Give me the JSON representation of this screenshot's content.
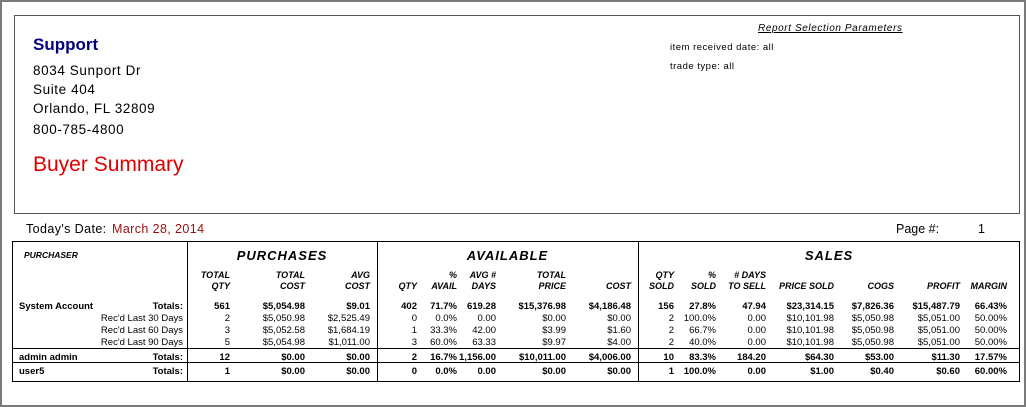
{
  "header": {
    "company": "Support",
    "address": [
      "8034 Sunport Dr",
      "Suite 404",
      "Orlando, FL 32809"
    ],
    "phone": "800-785-4800",
    "report_title": "Buyer Summary",
    "parameters_title": "Report Selection Parameters",
    "parameters": [
      "item received date: all",
      "trade type: all"
    ]
  },
  "report_info": {
    "date_label": "Today's Date:",
    "date": "March 28, 2014",
    "page_label": "Page #:",
    "page": 1
  },
  "table": {
    "purchaser_header": "PURCHASER",
    "sections": [
      "PURCHASES",
      "AVAILABLE",
      "SALES"
    ],
    "columns": [
      "TOTAL\nQTY",
      "TOTAL\nCOST",
      "AVG\nCOST",
      "QTY",
      "%\nAVAIL",
      "AVG #\nDAYS",
      "TOTAL\nPRICE",
      "COST",
      "QTY\nSOLD",
      "%\nSOLD",
      "# DAYS\nTO SELL",
      "PRICE SOLD",
      "COGS",
      "PROFIT",
      "MARGIN"
    ],
    "rows": [
      {
        "name": "System Account",
        "label": "Totals:",
        "cells": [
          "561",
          "$5,054.98",
          "$9.01",
          "402",
          "71.7%",
          "619.28",
          "$15,376.98",
          "$4,186.48",
          "156",
          "27.8%",
          "47.94",
          "$23,314.15",
          "$7,826.36",
          "$15,487.79",
          "66.43%"
        ]
      },
      {
        "label": "Rec'd Last 30 Days",
        "cells": [
          "2",
          "$5,050.98",
          "$2,525.49",
          "0",
          "0.0%",
          "0.00",
          "$0.00",
          "$0.00",
          "2",
          "100.0%",
          "0.00",
          "$10,101.98",
          "$5,050.98",
          "$5,051.00",
          "50.00%"
        ]
      },
      {
        "label": "Rec'd Last 60 Days",
        "cells": [
          "3",
          "$5,052.58",
          "$1,684.19",
          "1",
          "33.3%",
          "42.00",
          "$3.99",
          "$1.60",
          "2",
          "66.7%",
          "0.00",
          "$10,101.98",
          "$5,050.98",
          "$5,051.00",
          "50.00%"
        ]
      },
      {
        "label": "Rec'd Last 90 Days",
        "cells": [
          "5",
          "$5,054.98",
          "$1,011.00",
          "3",
          "60.0%",
          "63.33",
          "$9.97",
          "$4.00",
          "2",
          "40.0%",
          "0.00",
          "$10,101.98",
          "$5,050.98",
          "$5,051.00",
          "50.00%"
        ]
      },
      {
        "name": "admin admin",
        "label": "Totals:",
        "cells": [
          "12",
          "$0.00",
          "$0.00",
          "2",
          "16.7%",
          "1,156.00",
          "$10,011.00",
          "$4,006.00",
          "10",
          "83.3%",
          "184.20",
          "$64.30",
          "$53.00",
          "$11.30",
          "17.57%"
        ]
      },
      {
        "name": "user5",
        "label": "Totals:",
        "cells": [
          "1",
          "$0.00",
          "$0.00",
          "0",
          "0.0%",
          "0.00",
          "$0.00",
          "$0.00",
          "1",
          "100.0%",
          "0.00",
          "$1.00",
          "$0.40",
          "$0.60",
          "60.00%"
        ]
      }
    ]
  }
}
